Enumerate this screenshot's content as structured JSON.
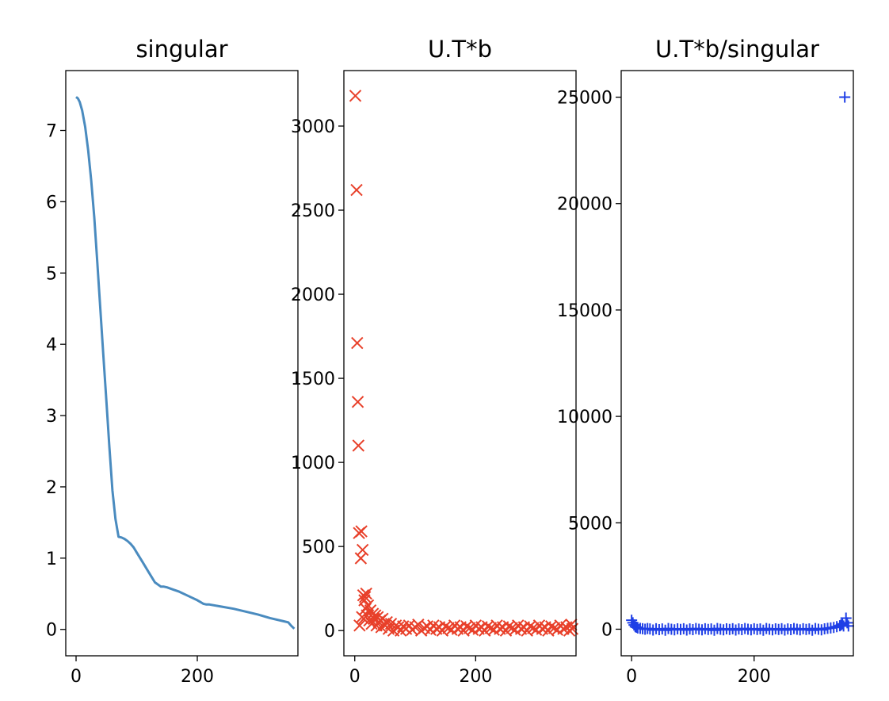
{
  "chart_data": [
    {
      "type": "line",
      "title": "singular",
      "xlabel": "",
      "ylabel": "",
      "xlim": [
        -17,
        366
      ],
      "ylim": [
        -0.37,
        7.84
      ],
      "xticks": [
        0,
        200
      ],
      "yticks": [
        0,
        1,
        2,
        3,
        4,
        5,
        6,
        7
      ],
      "color": "#4a8bbf",
      "series": [
        {
          "x": [
            0,
            3,
            6,
            10,
            15,
            20,
            25,
            30,
            35,
            40,
            45,
            50,
            55,
            60,
            65,
            70,
            75,
            80,
            85,
            90,
            95,
            100,
            110,
            120,
            130,
            140,
            145,
            150,
            160,
            170,
            180,
            190,
            200,
            210,
            215,
            220,
            240,
            260,
            280,
            300,
            320,
            340,
            350,
            355,
            360
          ],
          "y": [
            7.47,
            7.45,
            7.4,
            7.28,
            7.05,
            6.72,
            6.3,
            5.78,
            5.15,
            4.5,
            3.85,
            3.2,
            2.55,
            1.95,
            1.55,
            1.3,
            1.29,
            1.27,
            1.24,
            1.2,
            1.15,
            1.08,
            0.94,
            0.8,
            0.66,
            0.6,
            0.6,
            0.59,
            0.56,
            0.53,
            0.49,
            0.45,
            0.41,
            0.36,
            0.35,
            0.35,
            0.32,
            0.29,
            0.25,
            0.21,
            0.16,
            0.12,
            0.1,
            0.05,
            0.01
          ]
        }
      ]
    },
    {
      "type": "scatter",
      "title": "U.T*b",
      "xlabel": "",
      "ylabel": "",
      "xlim": [
        -18,
        366
      ],
      "ylim": [
        -150,
        3330
      ],
      "xticks": [
        0,
        200
      ],
      "yticks": [
        0,
        500,
        1000,
        1500,
        2000,
        2500,
        3000
      ],
      "marker": "x",
      "color": "#e8402a",
      "series": [
        {
          "x": [
            1,
            3,
            4,
            5,
            6,
            7,
            8,
            10,
            11,
            12,
            13,
            14,
            15,
            16,
            17,
            18,
            19,
            20,
            22,
            24,
            26,
            28,
            30,
            32,
            34,
            36,
            38,
            40,
            42,
            44,
            46,
            48,
            50,
            53,
            56,
            60,
            64,
            68,
            72,
            76,
            80,
            85,
            90,
            95,
            100,
            105,
            110,
            115,
            120,
            125,
            130,
            135,
            140,
            145,
            150,
            155,
            160,
            165,
            170,
            175,
            180,
            185,
            190,
            195,
            200,
            205,
            210,
            215,
            220,
            225,
            230,
            235,
            240,
            245,
            250,
            255,
            260,
            265,
            270,
            275,
            280,
            285,
            290,
            295,
            300,
            305,
            310,
            315,
            320,
            325,
            330,
            335,
            340,
            345,
            350,
            355,
            358,
            360
          ],
          "y": [
            3180,
            2620,
            1710,
            1360,
            1100,
            580,
            30,
            430,
            590,
            80,
            480,
            210,
            70,
            180,
            200,
            130,
            220,
            90,
            150,
            60,
            120,
            40,
            100,
            70,
            90,
            30,
            80,
            50,
            60,
            20,
            70,
            40,
            30,
            50,
            10,
            40,
            0,
            30,
            20,
            0,
            25,
            10,
            30,
            5,
            20,
            35,
            0,
            15,
            25,
            5,
            30,
            10,
            20,
            0,
            25,
            15,
            5,
            30,
            10,
            20,
            0,
            25,
            15,
            5,
            30,
            10,
            20,
            0,
            25,
            15,
            5,
            30,
            10,
            20,
            0,
            25,
            15,
            5,
            30,
            10,
            20,
            0,
            25,
            15,
            5,
            30,
            10,
            20,
            0,
            25,
            15,
            5,
            30,
            10,
            20,
            0,
            35,
            10
          ]
        }
      ]
    },
    {
      "type": "scatter",
      "title": "U.T*b/singular",
      "xlabel": "",
      "ylabel": "",
      "xlim": [
        -17,
        362
      ],
      "ylim": [
        -1250,
        26250
      ],
      "xticks": [
        0,
        200
      ],
      "yticks": [
        0,
        5000,
        10000,
        15000,
        20000,
        25000
      ],
      "marker": "+",
      "color": "#1f3fe6",
      "series": [
        {
          "x": [
            0,
            2,
            4,
            6,
            8,
            10,
            14,
            18,
            22,
            26,
            30,
            35,
            40,
            45,
            50,
            55,
            60,
            65,
            70,
            75,
            80,
            85,
            90,
            95,
            100,
            105,
            110,
            115,
            120,
            125,
            130,
            135,
            140,
            145,
            150,
            155,
            160,
            165,
            170,
            175,
            180,
            185,
            190,
            195,
            200,
            205,
            210,
            215,
            220,
            225,
            230,
            235,
            240,
            245,
            250,
            255,
            260,
            265,
            270,
            275,
            280,
            285,
            290,
            295,
            300,
            305,
            310,
            315,
            320,
            325,
            330,
            335,
            340,
            342,
            344,
            346,
            348,
            350,
            352,
            354
          ],
          "y": [
            420,
            300,
            200,
            120,
            90,
            60,
            40,
            20,
            0,
            30,
            10,
            -40,
            20,
            -20,
            10,
            -50,
            30,
            0,
            -30,
            15,
            -10,
            20,
            -40,
            10,
            -20,
            30,
            0,
            -30,
            20,
            -10,
            10,
            -50,
            30,
            0,
            -30,
            15,
            -10,
            20,
            -40,
            10,
            -20,
            30,
            0,
            -30,
            20,
            -10,
            10,
            -50,
            30,
            0,
            -30,
            15,
            -10,
            20,
            -40,
            10,
            -20,
            30,
            0,
            -30,
            20,
            -10,
            10,
            -50,
            30,
            0,
            -30,
            15,
            40,
            60,
            80,
            120,
            160,
            200,
            250,
            150,
            25000,
            520,
            300,
            150
          ]
        }
      ]
    }
  ]
}
